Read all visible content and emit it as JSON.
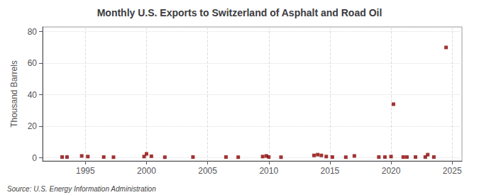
{
  "chart_data": {
    "type": "scatter",
    "title": "Monthly U.S. Exports to Switzerland of Asphalt and Road Oil",
    "ylabel": "Thousand Barrels",
    "annotations": [
      "Source: U.S. Energy Information Administration"
    ],
    "x": [
      1993.1,
      1993.5,
      1994.7,
      1995.2,
      1996.5,
      1997.3,
      1999.8,
      2000.0,
      2000.4,
      2001.5,
      2003.8,
      2006.5,
      2007.5,
      2009.5,
      2009.8,
      2010.0,
      2011.0,
      2013.7,
      2014.0,
      2014.3,
      2014.7,
      2015.2,
      2016.3,
      2017.0,
      2019.0,
      2019.5,
      2020.0,
      2020.2,
      2021.0,
      2021.3,
      2022.0,
      2022.8,
      2023.0,
      2023.5,
      2024.5
    ],
    "values": [
      0.5,
      0.5,
      1.2,
      0.8,
      0.5,
      0.4,
      0.8,
      2.5,
      1.0,
      0.4,
      0.5,
      0.5,
      0.4,
      0.8,
      1.2,
      0.5,
      0.4,
      1.5,
      2.0,
      1.5,
      0.8,
      0.5,
      0.4,
      1.2,
      0.5,
      0.5,
      0.8,
      34.0,
      0.5,
      0.5,
      0.5,
      0.5,
      2.0,
      0.5,
      70.0
    ],
    "color": "#8b0000",
    "marker": "square",
    "xlim": [
      1991.5,
      2025.8
    ],
    "ylim": [
      -2,
      83
    ],
    "xticks": [
      1995,
      2000,
      2005,
      2010,
      2015,
      2020,
      2025
    ],
    "yticks": [
      0,
      20,
      40,
      60,
      80
    ],
    "grid": true
  }
}
